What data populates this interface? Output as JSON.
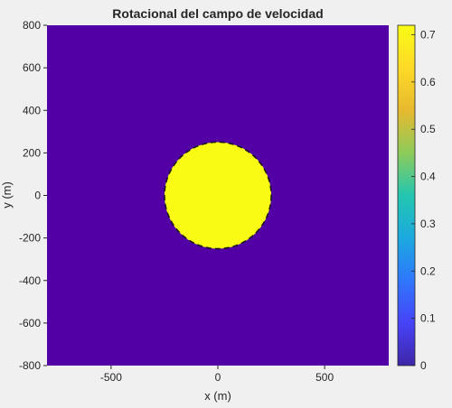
{
  "chart_data": {
    "type": "heatmap",
    "title": "Rotacional del campo de velocidad",
    "xlabel": "x (m)",
    "ylabel": "y (m)",
    "xlim": [
      -800,
      800
    ],
    "ylim": [
      -800,
      800
    ],
    "xticks": [
      {
        "value": -500,
        "label": "-500"
      },
      {
        "value": 0,
        "label": "0"
      },
      {
        "value": 500,
        "label": "500"
      }
    ],
    "yticks": [
      {
        "value": 800,
        "label": "800"
      },
      {
        "value": 600,
        "label": "600"
      },
      {
        "value": 400,
        "label": "400"
      },
      {
        "value": 200,
        "label": "200"
      },
      {
        "value": 0,
        "label": "0"
      },
      {
        "value": -200,
        "label": "-200"
      },
      {
        "value": -400,
        "label": "-400"
      },
      {
        "value": -600,
        "label": "-600"
      },
      {
        "value": -800,
        "label": "-800"
      }
    ],
    "field": {
      "background_value": 0,
      "region": {
        "shape": "circle",
        "center": [
          0,
          0
        ],
        "radius": 250,
        "value": 0.72
      },
      "boundary": "dashed"
    },
    "colorbar": {
      "range": [
        0,
        0.72
      ],
      "ticks": [
        {
          "value": 0,
          "label": "0"
        },
        {
          "value": 0.1,
          "label": "0.1"
        },
        {
          "value": 0.2,
          "label": "0.2"
        },
        {
          "value": 0.3,
          "label": "0.3"
        },
        {
          "value": 0.4,
          "label": "0.4"
        },
        {
          "value": 0.5,
          "label": "0.5"
        },
        {
          "value": 0.6,
          "label": "0.6"
        },
        {
          "value": 0.7,
          "label": "0.7"
        }
      ],
      "colormap": [
        "#3e26a8",
        "#4743f8",
        "#2f77fd",
        "#1ca9df",
        "#23c6b0",
        "#8dcb5a",
        "#e7b92f",
        "#fdda27",
        "#f9fb15"
      ]
    },
    "grid": false,
    "colors": {
      "low": "#5200a6",
      "high": "#f9fb15"
    }
  }
}
